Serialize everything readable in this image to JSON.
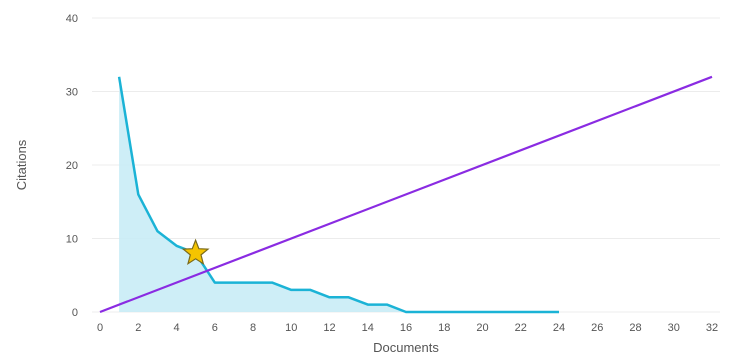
{
  "chart_data": {
    "type": "line",
    "title": "",
    "xlabel": "Documents",
    "ylabel": "Citations",
    "xlim": [
      0,
      32
    ],
    "ylim": [
      0,
      40
    ],
    "x_ticks": [
      0,
      2,
      4,
      6,
      8,
      10,
      12,
      14,
      16,
      18,
      20,
      22,
      24,
      26,
      28,
      30,
      32
    ],
    "y_ticks": [
      0,
      10,
      20,
      30,
      40
    ],
    "grid": "horizontal",
    "legend": "none",
    "series": [
      {
        "kind": "area",
        "color": "#1bb3d6",
        "fill_color": "#c9ecf6",
        "points": [
          [
            1,
            32
          ],
          [
            2,
            16
          ],
          [
            3,
            11
          ],
          [
            4,
            9
          ],
          [
            5,
            8
          ],
          [
            6,
            4
          ],
          [
            7,
            4
          ],
          [
            8,
            4
          ],
          [
            9,
            4
          ],
          [
            10,
            3
          ],
          [
            11,
            3
          ],
          [
            12,
            2
          ],
          [
            13,
            2
          ],
          [
            14,
            1
          ],
          [
            15,
            1
          ],
          [
            16,
            0
          ],
          [
            17,
            0
          ],
          [
            18,
            0
          ],
          [
            19,
            0
          ],
          [
            20,
            0
          ],
          [
            21,
            0
          ],
          [
            22,
            0
          ],
          [
            23,
            0
          ],
          [
            24,
            0
          ]
        ]
      },
      {
        "kind": "line",
        "color": "#8a2be2",
        "points": [
          [
            0,
            0
          ],
          [
            32,
            32
          ]
        ]
      }
    ],
    "marker": {
      "shape": "star",
      "x": 5,
      "y": 8,
      "color": "#f5c400",
      "stroke": "#7a6a1a"
    }
  }
}
